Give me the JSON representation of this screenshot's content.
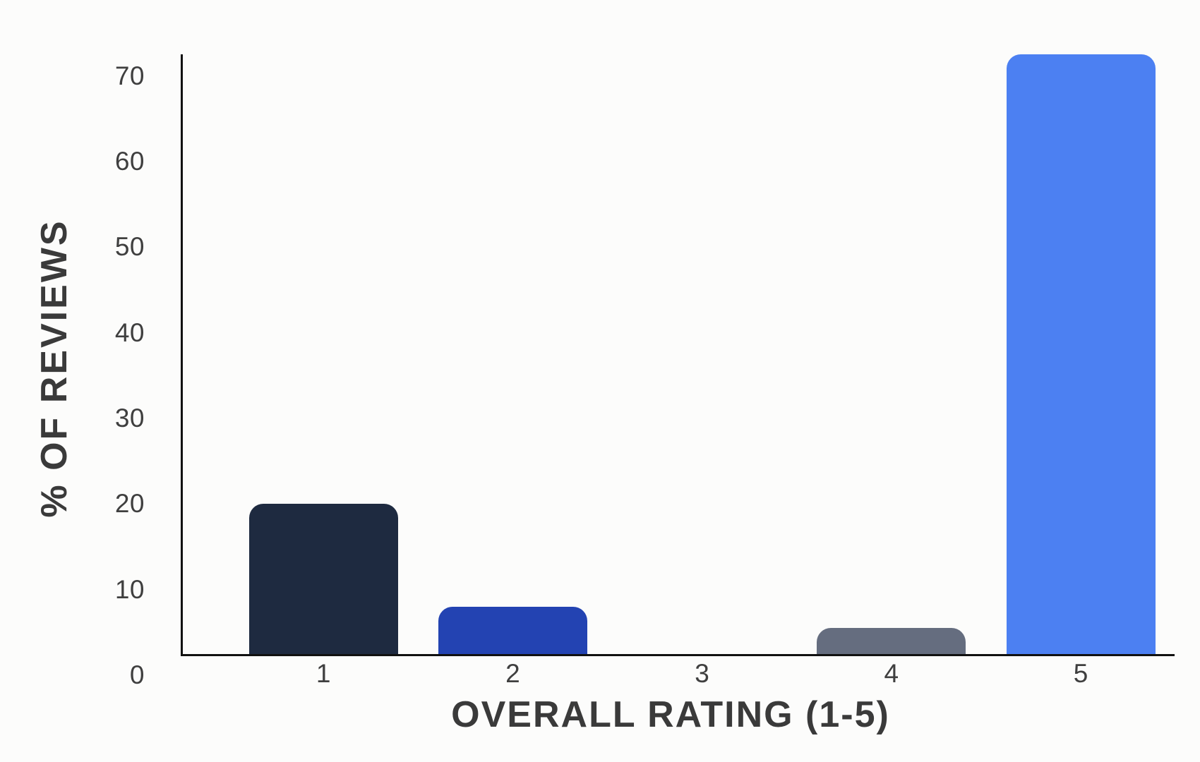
{
  "chart_data": {
    "type": "bar",
    "title": "",
    "xlabel": "OVERALL RATING (1-5)",
    "ylabel": "% OF REVIEWS",
    "categories": [
      "1",
      "2",
      "3",
      "4",
      "5"
    ],
    "values": [
      20,
      8,
      0,
      5.5,
      72.5
    ],
    "bar_colors": [
      "#1E2A40",
      "#2343B2",
      null,
      "#656D7F",
      "#4C80F2"
    ],
    "y_ticks": [
      0,
      10,
      20,
      30,
      40,
      50,
      60,
      70
    ],
    "ylim": [
      0,
      74
    ],
    "xlim": [
      0,
      5.6
    ],
    "grid": false,
    "legend": false,
    "background_color": "#FCFCFB",
    "axis_color": "#111111",
    "tick_label_color": "#3F3F3F",
    "axis_title_color": "#3A3A3A"
  }
}
